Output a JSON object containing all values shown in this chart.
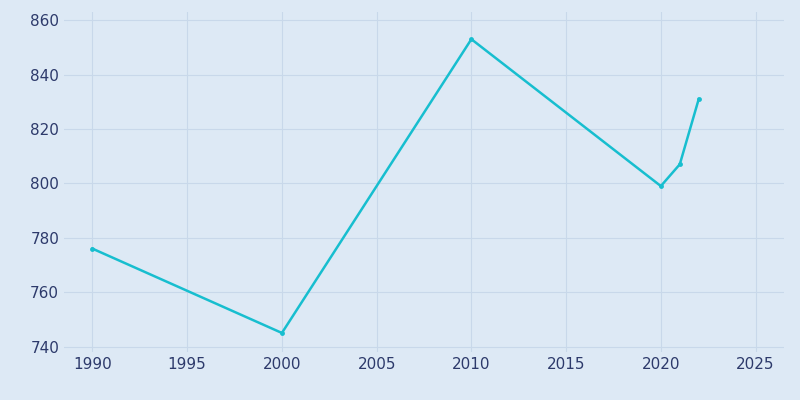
{
  "years": [
    1990,
    2000,
    2010,
    2020,
    2021,
    2022
  ],
  "population": [
    776,
    745,
    853,
    799,
    807,
    831
  ],
  "line_color": "#17becf",
  "marker_color": "#17becf",
  "background_color": "#dde9f5",
  "plot_background_color": "#dde9f5",
  "grid_color": "#c8d8ea",
  "text_color": "#2d3a6b",
  "xlim": [
    1988.5,
    2026.5
  ],
  "ylim": [
    738,
    863
  ],
  "xticks": [
    1990,
    1995,
    2000,
    2005,
    2010,
    2015,
    2020,
    2025
  ],
  "yticks": [
    740,
    760,
    780,
    800,
    820,
    840,
    860
  ],
  "figsize": [
    8.0,
    4.0
  ],
  "dpi": 100
}
